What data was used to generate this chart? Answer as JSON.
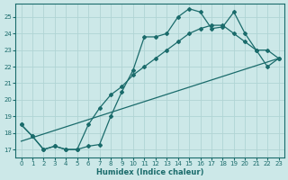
{
  "xlabel": "Humidex (Indice chaleur)",
  "bg_color": "#cce8e8",
  "grid_color": "#b0d4d4",
  "line_color": "#1a6b6b",
  "xlim": [
    -0.5,
    23.5
  ],
  "ylim": [
    16.5,
    25.8
  ],
  "yticks": [
    17,
    18,
    19,
    20,
    21,
    22,
    23,
    24,
    25
  ],
  "xticks": [
    0,
    1,
    2,
    3,
    4,
    5,
    6,
    7,
    8,
    9,
    10,
    11,
    12,
    13,
    14,
    15,
    16,
    17,
    18,
    19,
    20,
    21,
    22,
    23
  ],
  "series": [
    {
      "x": [
        0,
        1,
        2,
        3,
        4,
        5,
        6,
        7,
        8,
        9,
        10,
        11,
        12,
        13,
        14,
        15,
        16,
        17,
        18,
        19,
        20,
        21,
        22,
        23
      ],
      "y": [
        18.5,
        17.8,
        17.0,
        17.2,
        17.0,
        17.0,
        17.2,
        17.3,
        19.0,
        20.5,
        21.8,
        23.8,
        23.8,
        24.0,
        25.0,
        25.5,
        25.3,
        24.3,
        24.4,
        25.3,
        24.0,
        23.0,
        22.0,
        22.5
      ]
    },
    {
      "x": [
        0,
        1,
        2,
        3,
        4,
        5,
        6,
        7,
        8,
        9,
        10,
        11,
        12,
        13,
        14,
        15,
        16,
        17,
        18,
        19,
        20,
        21,
        22,
        23
      ],
      "y": [
        18.5,
        17.8,
        17.0,
        17.2,
        17.0,
        17.0,
        18.5,
        19.5,
        20.3,
        20.8,
        21.5,
        22.0,
        22.5,
        23.0,
        23.5,
        24.0,
        24.3,
        24.5,
        24.5,
        24.0,
        23.5,
        23.0,
        23.0,
        22.5
      ]
    },
    {
      "x": [
        0,
        23
      ],
      "y": [
        17.5,
        22.5
      ]
    }
  ]
}
